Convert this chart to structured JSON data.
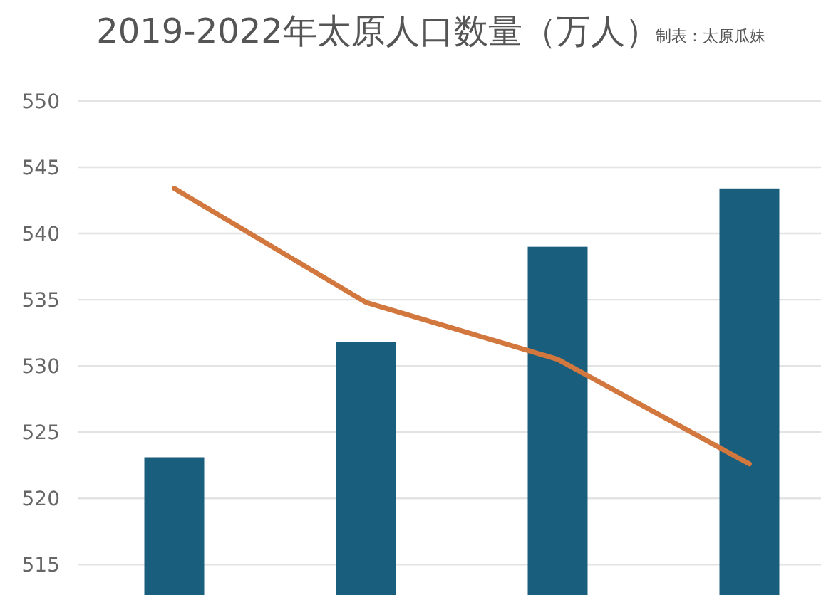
{
  "chart_data": {
    "type": "bar",
    "title": "2019-2022年太原人口数量（万人）",
    "annotations": [
      "制表：太原瓜妹"
    ],
    "categories": [
      null,
      null,
      null,
      null
    ],
    "series": [
      {
        "color": "#1a5e7d",
        "values": [
          523.1,
          531.8,
          539.0,
          543.4
        ]
      },
      {
        "type": "line",
        "color": "#d2773e",
        "values": [
          543.4,
          534.8,
          530.5,
          522.6
        ]
      }
    ],
    "ylim": [
      512.7,
      550
    ],
    "yticks": [
      515,
      520,
      525,
      530,
      535,
      540,
      545,
      550
    ],
    "grid": "y",
    "tick_labels": "y"
  }
}
